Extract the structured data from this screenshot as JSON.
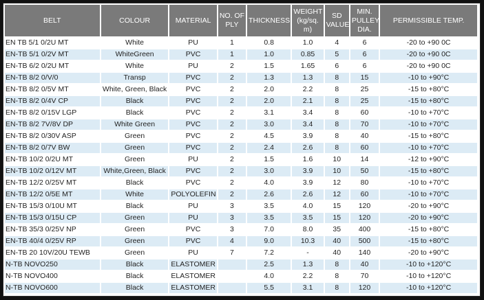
{
  "headers": {
    "belt": "BELT",
    "colour": "COLOUR",
    "material": "MATERIAL",
    "ply": "NO. OF PLY",
    "thickness": "THICKNESS",
    "weight": "WEIGHT (kg/sq. m)",
    "sd": "SD VALUE",
    "pulley": "MIN. PULLEY DIA.",
    "temp": "PERMISSIBLE TEMP."
  },
  "rows": [
    [
      "EN TB 5/1 0/2U MT",
      "White",
      "PU",
      "1",
      "0.8",
      "1.0",
      "4",
      "6",
      "-20 to +90 0C"
    ],
    [
      "EN-TB 5/1 0/2V MT",
      "WhiteGreen",
      "PVC",
      "1",
      "1.0",
      "0.85",
      "5",
      "6",
      "-20 to +90 0C"
    ],
    [
      "EN-TB 6/2 0/2U MT",
      "White",
      "PU",
      "2",
      "1.5",
      "1.65",
      "6",
      "6",
      "-20 to +90 0C"
    ],
    [
      "EN-TB 8/2 0/V/0",
      "Transp",
      "PVC",
      "2",
      "1.3",
      "1.3",
      "8",
      "15",
      "-10 to +90°C"
    ],
    [
      "EN-TB 8/2 0/5V MT",
      "White, Green, Black",
      "PVC",
      "2",
      "2.0",
      "2.2",
      "8",
      "25",
      "-15 to +80°C"
    ],
    [
      "EN-TB 8/2 0/4V CP",
      "Black",
      "PVC",
      "2",
      "2.0",
      "2.1",
      "8",
      "25",
      "-15 to +80°C"
    ],
    [
      "EN-TB 8/2 0/15V LGP",
      "Black",
      "PVC",
      "2",
      "3.1",
      "3.4",
      "8",
      "60",
      "-10 to +70°C"
    ],
    [
      "EN-TB 8/2 7V/8V DP",
      "White Green",
      "PVC",
      "2",
      "3.0",
      "3.4",
      "8",
      "70",
      "-10 to +70°C"
    ],
    [
      "EN-TB 8/2 0/30V ASP",
      "Green",
      "PVC",
      "2",
      "4.5",
      "3.9",
      "8",
      "40",
      "-15 to +80°C"
    ],
    [
      "EN-TB 8/2 0/7V BW",
      "Green",
      "PVC",
      "2",
      "2.4",
      "2.6",
      "8",
      "60",
      "-10 to +70°C"
    ],
    [
      "EN-TB 10/2 0/2U MT",
      "Green",
      "PU",
      "2",
      "1.5",
      "1.6",
      "10",
      "14",
      "-12 to +90°C"
    ],
    [
      "EN-TB 10/2 0/12V MT",
      "White,Green, Black",
      "PVC",
      "2",
      "3.0",
      "3.9",
      "10",
      "50",
      "-15 to +80°C"
    ],
    [
      "EN-TB 12/2 0/25V MT",
      "Black",
      "PVC",
      "2",
      "4.0",
      "3.9",
      "12",
      "80",
      "-10 to +70°C"
    ],
    [
      "EN-TB 12/2 0/5E MT",
      "White",
      "POLYOLEFIN",
      "2",
      "2.6",
      "2.6",
      "12",
      "60",
      "-10 to +70°C"
    ],
    [
      "EN-TB 15/3 0/10U MT",
      "Black",
      "PU",
      "3",
      "3.5",
      "4.0",
      "15",
      "120",
      "-20 to +90°C"
    ],
    [
      "EN-TB 15/3 0/15U CP",
      "Green",
      "PU",
      "3",
      "3.5",
      "3.5",
      "15",
      "120",
      "-20 to +90°C"
    ],
    [
      "EN-TB 35/3 0/25V NP",
      "Green",
      "PVC",
      "3",
      "7.0",
      "8.0",
      "35",
      "400",
      "-15 to +80°C"
    ],
    [
      "EN-TB 40/4 0/25V RP",
      "Green",
      "PVC",
      "4",
      "9.0",
      "10.3",
      "40",
      "500",
      "-15 to +80°C"
    ],
    [
      "EN-TB 20 10V/20U TEWB",
      "Green",
      "PU",
      "7",
      "7.2",
      "-",
      "40",
      "140",
      "-20 to +90°C"
    ],
    [
      "N-TB NOVO250",
      "Black",
      "ELASTOMER WOVEN",
      "",
      "2.5",
      "1.3",
      "8",
      "40",
      "-10 to +120°C"
    ],
    [
      "N-TB NOVO400",
      "Black",
      "ELASTOMER WOVEN",
      "",
      "4.0",
      "2.2",
      "8",
      "70",
      "-10 to +120°C"
    ],
    [
      "N-TB NOVO600",
      "Black",
      "ELASTOMER WOVEN",
      "",
      "5.5",
      "3.1",
      "8",
      "120",
      "-10 to +120°C"
    ]
  ],
  "colors": {
    "header_bg": "#7a7a7a",
    "row_alt_bg": "#dcebf5",
    "page_bg": "#111111"
  }
}
